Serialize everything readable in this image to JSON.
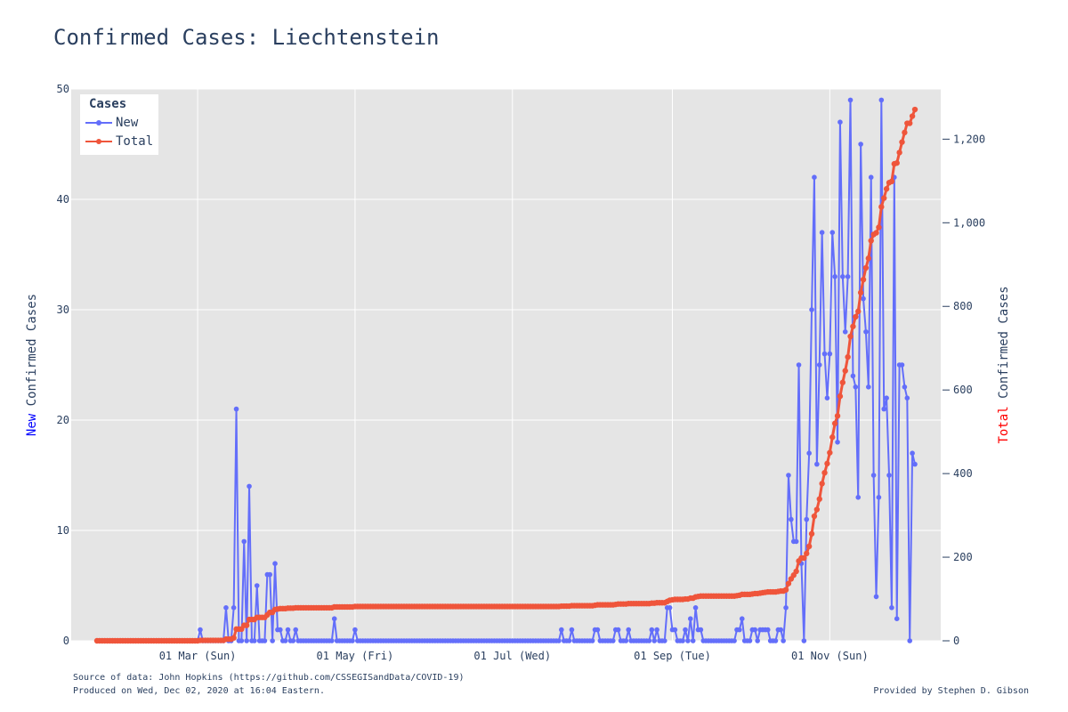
{
  "chart_data": {
    "type": "line",
    "title": "Confirmed Cases: Liechtenstein",
    "legend": {
      "title": "Cases",
      "position": "top-left"
    },
    "colors": {
      "new": "#636efa",
      "total": "#ef553b",
      "plot_bg": "#e5e5e5",
      "grid": "#ffffff"
    },
    "x_axis": {
      "type": "date",
      "range": [
        "2020-01-12",
        "2020-12-14"
      ],
      "ticks": [
        {
          "date": "2020-03-01",
          "label": "01 Mar (Sun)"
        },
        {
          "date": "2020-05-01",
          "label": "01 May (Fri)"
        },
        {
          "date": "2020-07-01",
          "label": "01 Jul (Wed)"
        },
        {
          "date": "2020-09-01",
          "label": "01 Sep (Tue)"
        },
        {
          "date": "2020-11-01",
          "label": "01 Nov (Sun)"
        }
      ]
    },
    "y_left": {
      "label_colored": "New",
      "label_rest": " Confirmed Cases",
      "range": [
        0,
        50
      ],
      "ticks": [
        0,
        10,
        20,
        30,
        40,
        50
      ],
      "tick_labels": [
        "0",
        "10",
        "20",
        "30",
        "40",
        "50"
      ]
    },
    "y_right": {
      "label_colored": "Total",
      "label_rest": " Confirmed Cases",
      "range": [
        0,
        1320
      ],
      "ticks": [
        0,
        200,
        400,
        600,
        800,
        1000,
        1200
      ],
      "tick_labels": [
        "0",
        "200",
        "400",
        "600",
        "800",
        "1,000",
        "1,200"
      ]
    },
    "series": [
      {
        "name": "New",
        "axis": "left",
        "start_date": "2020-01-22",
        "values": [
          0,
          0,
          0,
          0,
          0,
          0,
          0,
          0,
          0,
          0,
          0,
          0,
          0,
          0,
          0,
          0,
          0,
          0,
          0,
          0,
          0,
          0,
          0,
          0,
          0,
          0,
          0,
          0,
          0,
          0,
          0,
          0,
          0,
          0,
          0,
          0,
          0,
          0,
          0,
          0,
          1,
          0,
          0,
          0,
          0,
          0,
          0,
          0,
          0,
          0,
          3,
          0,
          0,
          3,
          21,
          0,
          0,
          9,
          0,
          14,
          0,
          0,
          5,
          0,
          0,
          0,
          6,
          6,
          0,
          7,
          1,
          1,
          0,
          0,
          1,
          0,
          0,
          1,
          0,
          0,
          0,
          0,
          0,
          0,
          0,
          0,
          0,
          0,
          0,
          0,
          0,
          0,
          2,
          0,
          0,
          0,
          0,
          0,
          0,
          0,
          1,
          0,
          0,
          0,
          0,
          0,
          0,
          0,
          0,
          0,
          0,
          0,
          0,
          0,
          0,
          0,
          0,
          0,
          0,
          0,
          0,
          0,
          0,
          0,
          0,
          0,
          0,
          0,
          0,
          0,
          0,
          0,
          0,
          0,
          0,
          0,
          0,
          0,
          0,
          0,
          0,
          0,
          0,
          0,
          0,
          0,
          0,
          0,
          0,
          0,
          0,
          0,
          0,
          0,
          0,
          0,
          0,
          0,
          0,
          0,
          0,
          0,
          0,
          0,
          0,
          0,
          0,
          0,
          0,
          0,
          0,
          0,
          0,
          0,
          0,
          0,
          0,
          0,
          0,
          0,
          1,
          0,
          0,
          0,
          1,
          0,
          0,
          0,
          0,
          0,
          0,
          0,
          0,
          1,
          1,
          0,
          0,
          0,
          0,
          0,
          0,
          1,
          1,
          0,
          0,
          0,
          1,
          0,
          0,
          0,
          0,
          0,
          0,
          0,
          0,
          1,
          0,
          1,
          0,
          0,
          0,
          3,
          3,
          1,
          1,
          0,
          0,
          0,
          1,
          0,
          2,
          0,
          3,
          1,
          1,
          0,
          0,
          0,
          0,
          0,
          0,
          0,
          0,
          0,
          0,
          0,
          0,
          0,
          1,
          1,
          2,
          0,
          0,
          0,
          1,
          1,
          0,
          1,
          1,
          1,
          1,
          0,
          0,
          0,
          1,
          1,
          0,
          3,
          15,
          11,
          9,
          9,
          25,
          7,
          0,
          11,
          17,
          30,
          42,
          16,
          25,
          37,
          26,
          22,
          26,
          37,
          33,
          18,
          47,
          33,
          28,
          33,
          49,
          24,
          23,
          13,
          45,
          31,
          28,
          23,
          42,
          15,
          4,
          13,
          49,
          21,
          22,
          15,
          3,
          42,
          2,
          25,
          25,
          23,
          22,
          0,
          17,
          16
        ]
      },
      {
        "name": "Total",
        "axis": "right",
        "start_date": "2020-01-22",
        "values": [
          0,
          0,
          0,
          0,
          0,
          0,
          0,
          0,
          0,
          0,
          0,
          0,
          0,
          0,
          0,
          0,
          0,
          0,
          0,
          0,
          0,
          0,
          0,
          0,
          0,
          0,
          0,
          0,
          0,
          0,
          0,
          0,
          0,
          0,
          0,
          0,
          0,
          0,
          0,
          0,
          1,
          1,
          1,
          1,
          1,
          1,
          1,
          1,
          1,
          1,
          4,
          4,
          4,
          7,
          28,
          28,
          28,
          37,
          37,
          51,
          51,
          51,
          56,
          56,
          56,
          56,
          62,
          68,
          68,
          75,
          76,
          77,
          77,
          77,
          78,
          78,
          78,
          79,
          79,
          79,
          79,
          79,
          79,
          79,
          79,
          79,
          79,
          79,
          79,
          79,
          79,
          79,
          81,
          81,
          81,
          81,
          81,
          81,
          81,
          81,
          82,
          82,
          82,
          82,
          82,
          82,
          82,
          82,
          82,
          82,
          82,
          82,
          82,
          82,
          82,
          82,
          82,
          82,
          82,
          82,
          82,
          82,
          82,
          82,
          82,
          82,
          82,
          82,
          82,
          82,
          82,
          82,
          82,
          82,
          82,
          82,
          82,
          82,
          82,
          82,
          82,
          82,
          82,
          82,
          82,
          82,
          82,
          82,
          82,
          82,
          82,
          82,
          82,
          82,
          82,
          82,
          82,
          82,
          82,
          82,
          82,
          82,
          82,
          82,
          82,
          82,
          82,
          82,
          82,
          82,
          82,
          82,
          82,
          82,
          82,
          82,
          82,
          82,
          82,
          82,
          83,
          83,
          83,
          83,
          84,
          84,
          84,
          84,
          84,
          84,
          84,
          84,
          84,
          85,
          86,
          86,
          86,
          86,
          86,
          86,
          86,
          87,
          88,
          88,
          88,
          88,
          89,
          89,
          89,
          89,
          89,
          89,
          89,
          89,
          89,
          90,
          90,
          91,
          91,
          91,
          91,
          94,
          97,
          98,
          99,
          99,
          99,
          99,
          100,
          100,
          102,
          102,
          105,
          106,
          107,
          107,
          107,
          107,
          107,
          107,
          107,
          107,
          107,
          107,
          107,
          107,
          107,
          107,
          108,
          109,
          111,
          111,
          111,
          111,
          112,
          113,
          113,
          114,
          115,
          116,
          117,
          117,
          117,
          117,
          118,
          119,
          119,
          122,
          137,
          148,
          157,
          166,
          191,
          198,
          198,
          209,
          226,
          256,
          298,
          314,
          339,
          376,
          402,
          424,
          450,
          487,
          520,
          538,
          585,
          618,
          646,
          679,
          728,
          752,
          775,
          788,
          833,
          864,
          892,
          915,
          957,
          972,
          976,
          989,
          1038,
          1059,
          1081,
          1096,
          1099,
          1141,
          1143,
          1168,
          1193,
          1216,
          1238,
          1238,
          1255,
          1271
        ]
      }
    ]
  },
  "footer": {
    "source": "Source of data: John Hopkins (https://github.com/CSSEGISandData/COVID-19)",
    "produced": "Produced on Wed, Dec 02, 2020 at 16:04 Eastern.",
    "credit": "Provided by Stephen D. Gibson"
  }
}
